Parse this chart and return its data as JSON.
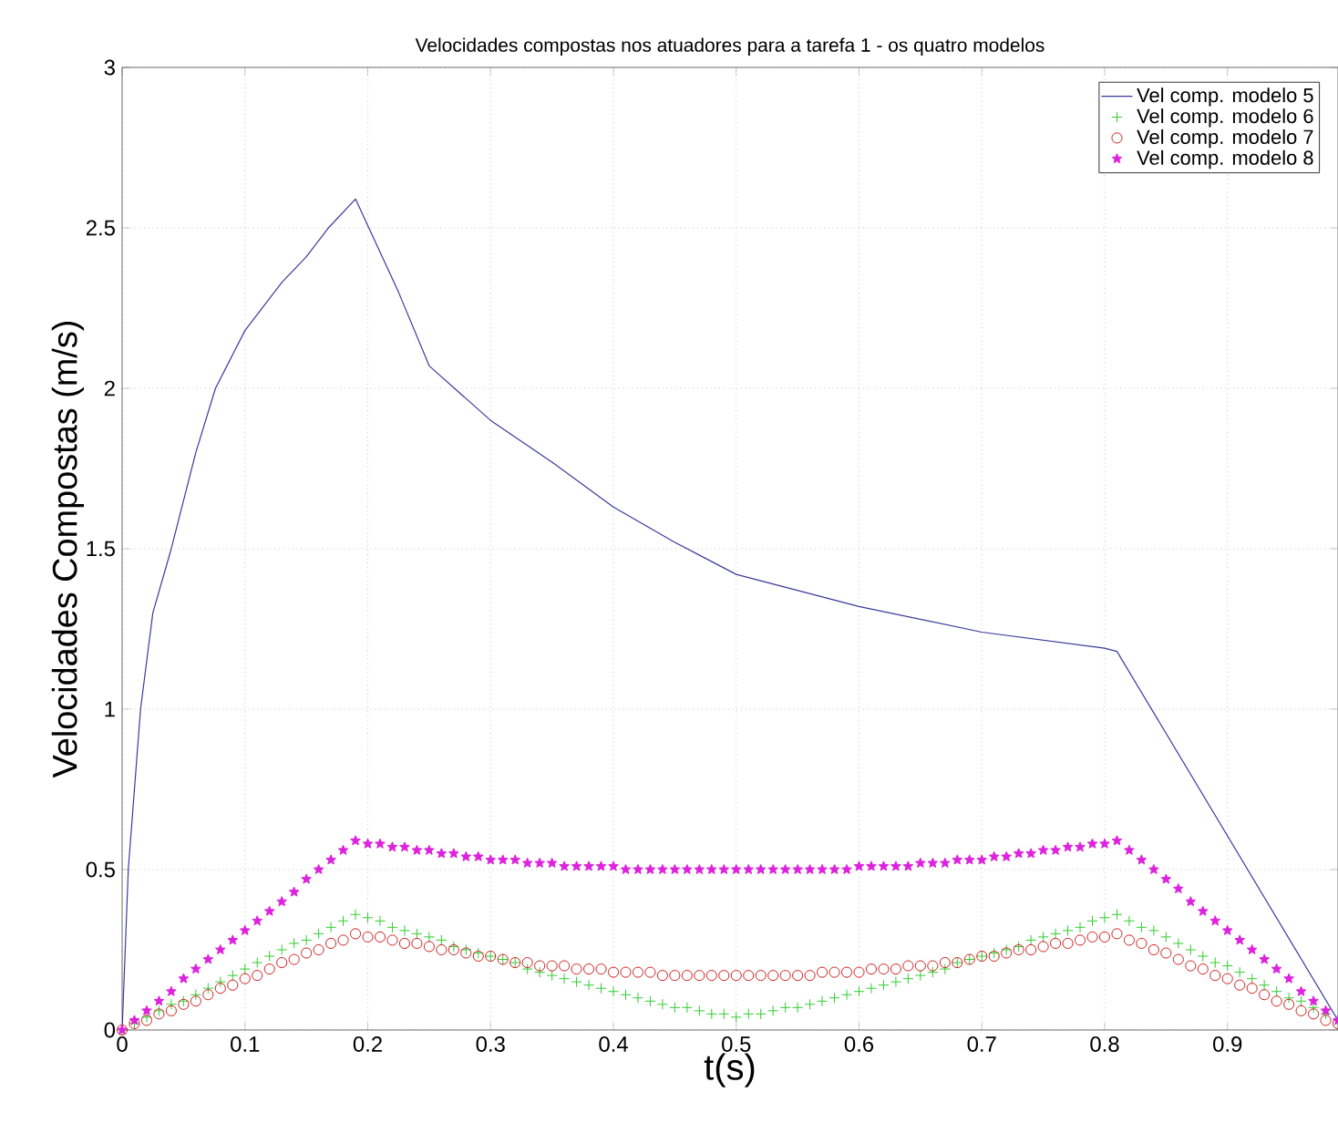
{
  "chart_data": {
    "type": "line",
    "title": "Velocidades compostas nos atuadores para a tarefa 1 - os quatro modelos",
    "xlabel": "t(s)",
    "ylabel": "Velocidades Compostas (m/s)",
    "x": [
      0,
      0.01,
      0.02,
      0.03,
      0.04,
      0.05,
      0.06,
      0.07,
      0.08,
      0.09,
      0.1,
      0.11,
      0.12,
      0.13,
      0.14,
      0.15,
      0.16,
      0.17,
      0.18,
      0.19,
      0.2,
      0.21,
      0.22,
      0.23,
      0.24,
      0.25,
      0.26,
      0.27,
      0.28,
      0.29,
      0.3,
      0.31,
      0.32,
      0.33,
      0.34,
      0.35,
      0.36,
      0.37,
      0.38,
      0.39,
      0.4,
      0.41,
      0.42,
      0.43,
      0.44,
      0.45,
      0.46,
      0.47,
      0.48,
      0.49,
      0.5,
      0.51,
      0.52,
      0.53,
      0.54,
      0.55,
      0.56,
      0.57,
      0.58,
      0.59,
      0.6,
      0.61,
      0.62,
      0.63,
      0.64,
      0.65,
      0.66,
      0.67,
      0.68,
      0.69,
      0.7,
      0.71,
      0.72,
      0.73,
      0.74,
      0.75,
      0.76,
      0.77,
      0.78,
      0.79,
      0.8,
      0.81,
      0.82,
      0.83,
      0.84,
      0.85,
      0.86,
      0.87,
      0.88,
      0.89,
      0.9,
      0.91,
      0.92,
      0.93,
      0.94,
      0.95,
      0.96,
      0.97,
      0.98,
      0.99
    ],
    "series": [
      {
        "name": "Vel comp. modelo 5",
        "marker": "none",
        "color": "#3a3a9a",
        "x": [
          0,
          0.005,
          0.015,
          0.025,
          0.04,
          0.06,
          0.076,
          0.1,
          0.13,
          0.15,
          0.168,
          0.19,
          0.225,
          0.25,
          0.3,
          0.35,
          0.4,
          0.45,
          0.5,
          0.6,
          0.7,
          0.8,
          0.81,
          0.99
        ],
        "values": [
          0,
          0.5,
          1.0,
          1.3,
          1.5,
          1.8,
          2.0,
          2.18,
          2.33,
          2.41,
          2.5,
          2.59,
          2.3,
          2.07,
          1.9,
          1.77,
          1.63,
          1.52,
          1.42,
          1.32,
          1.24,
          1.19,
          1.18,
          0.03
        ]
      },
      {
        "name": "Vel comp. modelo 6",
        "type": "scatter",
        "marker": "cross",
        "color": "#33cc33",
        "values": [
          0,
          0.02,
          0.04,
          0.06,
          0.08,
          0.09,
          0.11,
          0.13,
          0.15,
          0.17,
          0.19,
          0.21,
          0.23,
          0.25,
          0.27,
          0.28,
          0.3,
          0.32,
          0.34,
          0.36,
          0.35,
          0.34,
          0.32,
          0.31,
          0.3,
          0.29,
          0.28,
          0.26,
          0.25,
          0.24,
          0.23,
          0.22,
          0.21,
          0.19,
          0.18,
          0.17,
          0.16,
          0.15,
          0.14,
          0.13,
          0.12,
          0.11,
          0.1,
          0.09,
          0.08,
          0.07,
          0.07,
          0.06,
          0.05,
          0.05,
          0.04,
          0.05,
          0.05,
          0.06,
          0.07,
          0.07,
          0.08,
          0.09,
          0.1,
          0.11,
          0.12,
          0.13,
          0.14,
          0.15,
          0.16,
          0.17,
          0.18,
          0.19,
          0.21,
          0.22,
          0.23,
          0.24,
          0.25,
          0.26,
          0.28,
          0.29,
          0.3,
          0.31,
          0.32,
          0.34,
          0.35,
          0.36,
          0.34,
          0.32,
          0.31,
          0.29,
          0.27,
          0.25,
          0.23,
          0.21,
          0.2,
          0.18,
          0.16,
          0.14,
          0.12,
          0.1,
          0.09,
          0.07,
          0.05,
          0.03
        ]
      },
      {
        "name": "Vel comp. modelo 7",
        "type": "scatter",
        "marker": "circle",
        "color": "#cc2222",
        "values": [
          0,
          0.02,
          0.03,
          0.05,
          0.06,
          0.08,
          0.09,
          0.11,
          0.13,
          0.14,
          0.16,
          0.17,
          0.19,
          0.21,
          0.22,
          0.24,
          0.25,
          0.27,
          0.28,
          0.3,
          0.29,
          0.29,
          0.28,
          0.27,
          0.27,
          0.26,
          0.25,
          0.25,
          0.24,
          0.23,
          0.23,
          0.22,
          0.21,
          0.21,
          0.2,
          0.2,
          0.2,
          0.19,
          0.19,
          0.19,
          0.18,
          0.18,
          0.18,
          0.18,
          0.17,
          0.17,
          0.17,
          0.17,
          0.17,
          0.17,
          0.17,
          0.17,
          0.17,
          0.17,
          0.17,
          0.17,
          0.17,
          0.18,
          0.18,
          0.18,
          0.18,
          0.19,
          0.19,
          0.19,
          0.2,
          0.2,
          0.2,
          0.21,
          0.21,
          0.22,
          0.23,
          0.23,
          0.24,
          0.25,
          0.25,
          0.26,
          0.27,
          0.27,
          0.28,
          0.29,
          0.29,
          0.3,
          0.28,
          0.27,
          0.25,
          0.24,
          0.22,
          0.2,
          0.19,
          0.17,
          0.16,
          0.14,
          0.13,
          0.11,
          0.09,
          0.08,
          0.06,
          0.05,
          0.03,
          0.02
        ]
      },
      {
        "name": "Vel comp. modelo 8",
        "type": "scatter",
        "marker": "star",
        "color": "#dd22dd",
        "values": [
          0,
          0.03,
          0.06,
          0.09,
          0.12,
          0.16,
          0.19,
          0.22,
          0.25,
          0.28,
          0.31,
          0.34,
          0.37,
          0.4,
          0.43,
          0.47,
          0.5,
          0.53,
          0.56,
          0.59,
          0.58,
          0.58,
          0.57,
          0.57,
          0.56,
          0.56,
          0.55,
          0.55,
          0.54,
          0.54,
          0.53,
          0.53,
          0.53,
          0.52,
          0.52,
          0.52,
          0.51,
          0.51,
          0.51,
          0.51,
          0.51,
          0.5,
          0.5,
          0.5,
          0.5,
          0.5,
          0.5,
          0.5,
          0.5,
          0.5,
          0.5,
          0.5,
          0.5,
          0.5,
          0.5,
          0.5,
          0.5,
          0.5,
          0.5,
          0.5,
          0.51,
          0.51,
          0.51,
          0.51,
          0.51,
          0.52,
          0.52,
          0.52,
          0.53,
          0.53,
          0.53,
          0.54,
          0.54,
          0.55,
          0.55,
          0.56,
          0.56,
          0.57,
          0.57,
          0.58,
          0.58,
          0.59,
          0.56,
          0.53,
          0.5,
          0.47,
          0.44,
          0.4,
          0.37,
          0.34,
          0.31,
          0.28,
          0.25,
          0.22,
          0.19,
          0.16,
          0.12,
          0.09,
          0.06,
          0.03
        ]
      }
    ],
    "xlim": [
      0,
      0.99
    ],
    "ylim": [
      0,
      3
    ],
    "xticks": [
      0,
      0.1,
      0.2,
      0.3,
      0.4,
      0.5,
      0.6,
      0.7,
      0.8,
      0.9
    ],
    "yticks": [
      0,
      0.5,
      1,
      1.5,
      2,
      2.5,
      3
    ],
    "grid": true,
    "legend": "top right"
  }
}
